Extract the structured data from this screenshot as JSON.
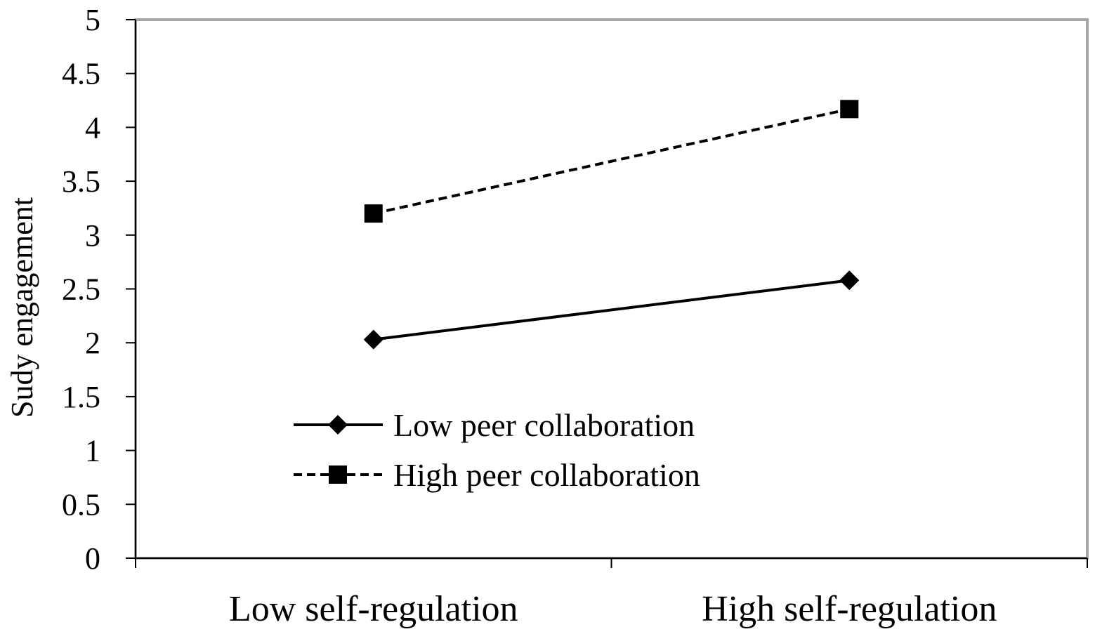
{
  "chart_data": {
    "type": "line",
    "title": "",
    "xlabel": "",
    "ylabel": "Sudy engagement",
    "categories": [
      "Low self-regulation",
      "High self-regulation"
    ],
    "ylim": [
      0,
      5
    ],
    "yticks": [
      "0",
      "0.5",
      "1",
      "1.5",
      "2",
      "2.5",
      "3",
      "3.5",
      "4",
      "4.5",
      "5"
    ],
    "grid": false,
    "legend_position": "lower-left",
    "series": [
      {
        "name": "Low peer collaboration",
        "values": [
          2.03,
          2.58
        ],
        "line_style": "solid",
        "marker": "diamond",
        "color": "#000000"
      },
      {
        "name": "High peer collaboration",
        "values": [
          3.2,
          4.17
        ],
        "line_style": "dashed",
        "marker": "square",
        "color": "#000000"
      }
    ],
    "frame_color": "#a6a6a6"
  }
}
